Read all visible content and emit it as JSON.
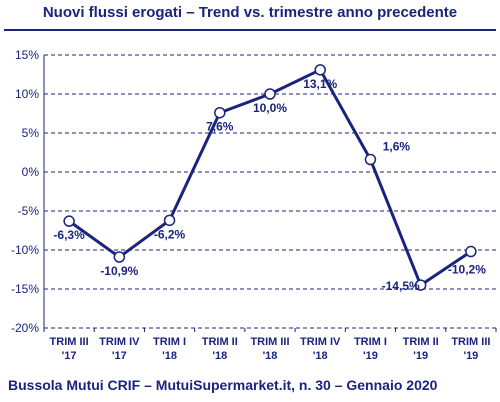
{
  "title": "Nuovi flussi erogati – Trend vs. trimestre anno precedente",
  "footer": "Bussola Mutui CRIF – MutuiSupermarket.it,  n. 30 – Gennaio 2020",
  "colors": {
    "series": "#1a237e",
    "text": "#1a237e",
    "grid": "#1a237e"
  },
  "chart_data": {
    "type": "line",
    "categories": [
      [
        "TRIM III",
        "'17"
      ],
      [
        "TRIM IV",
        "'17"
      ],
      [
        "TRIM I",
        "'18"
      ],
      [
        "TRIM II",
        "'18"
      ],
      [
        "TRIM III",
        "'18"
      ],
      [
        "TRIM IV",
        "'18"
      ],
      [
        "TRIM I",
        "'19"
      ],
      [
        "TRIM II",
        "'19"
      ],
      [
        "TRIM III",
        "'19"
      ]
    ],
    "values": [
      -6.3,
      -10.9,
      -6.2,
      7.6,
      10.0,
      13.1,
      1.6,
      -14.5,
      -10.2
    ],
    "data_labels": [
      "-6,3%",
      "-10,9%",
      "-6,2%",
      "7,6%",
      "10,0%",
      "13,1%",
      "1,6%",
      "-14,5%",
      "-10,2%"
    ],
    "yticks": [
      15,
      10,
      5,
      0,
      -5,
      -10,
      -15,
      -20
    ],
    "ytick_labels": [
      "15%",
      "10%",
      "5%",
      "0%",
      "-5%",
      "-10%",
      "-15%",
      "-20%"
    ],
    "ylim": [
      -20,
      15
    ],
    "grid": "horizontal dashed"
  }
}
